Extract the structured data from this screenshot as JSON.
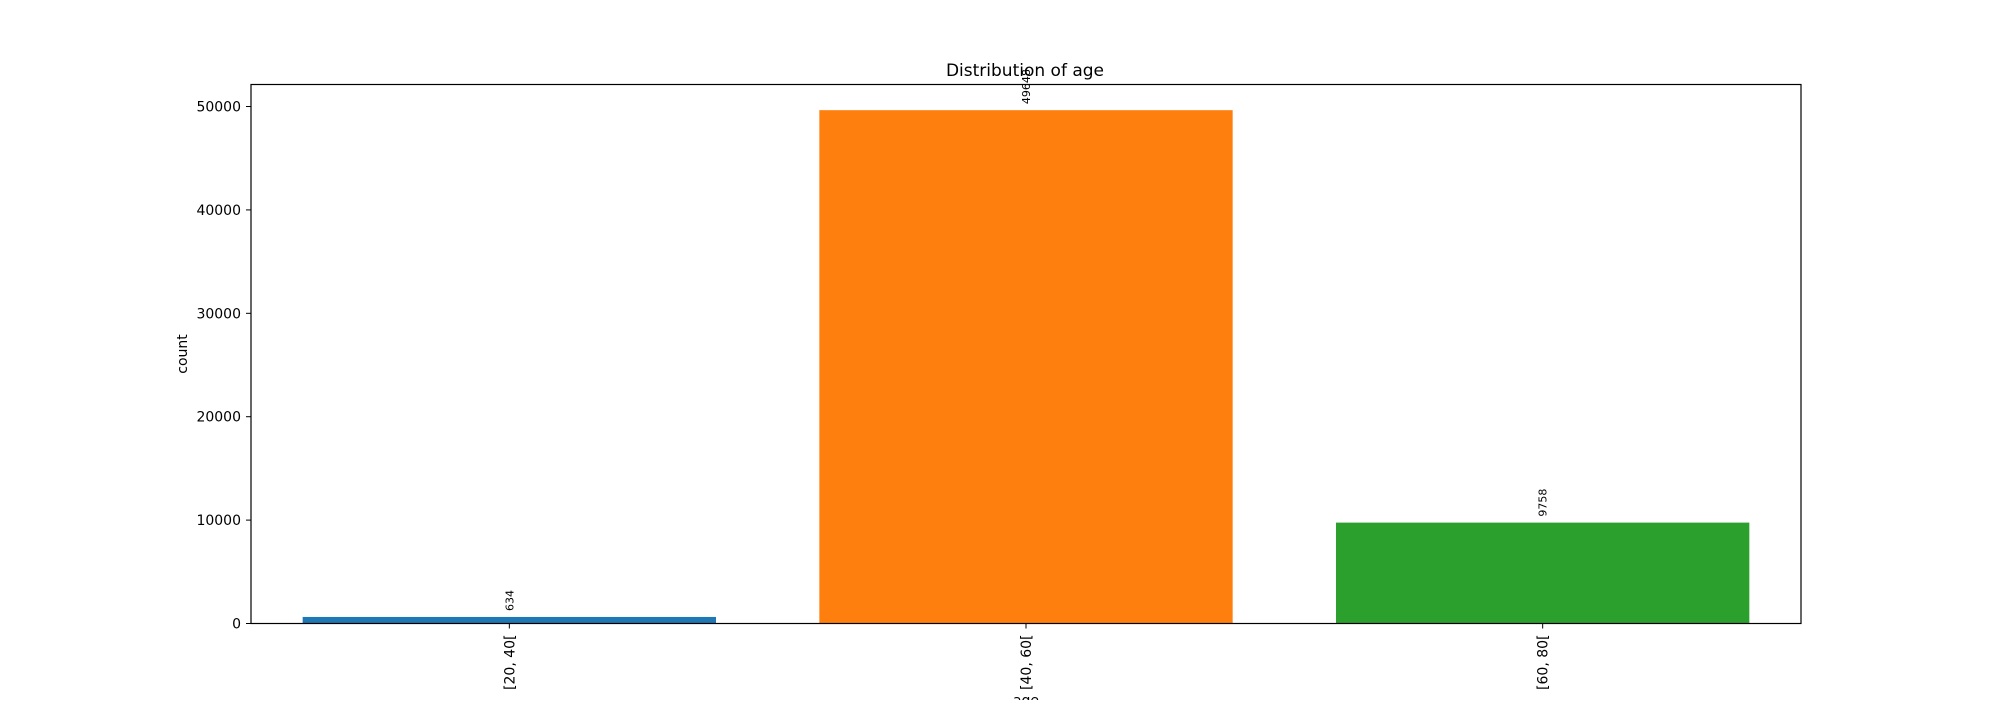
{
  "chart_data": {
    "type": "bar",
    "title": "Distribution of age",
    "xlabel": "age",
    "ylabel": "count",
    "categories": [
      "[20, 40[",
      "[40, 60[",
      "[60, 80["
    ],
    "values": [
      634,
      49648,
      9758
    ],
    "colors": [
      "#1f77b4",
      "#ff7f0e",
      "#2ca02c"
    ],
    "yticks": [
      0,
      10000,
      20000,
      30000,
      40000,
      50000
    ],
    "ylim": [
      0,
      52130
    ],
    "grid": false,
    "legend": "none"
  }
}
